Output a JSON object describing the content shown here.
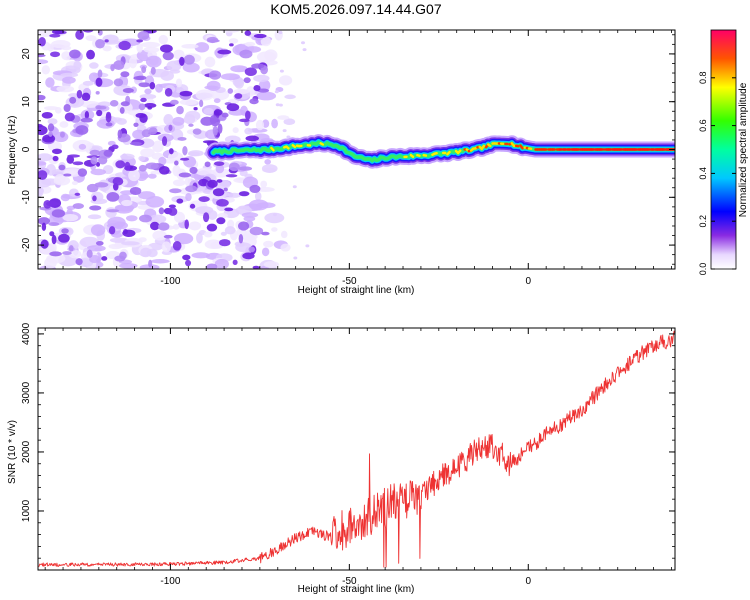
{
  "title": "KOM5.2026.097.14.44.G07",
  "chart_data": [
    {
      "type": "heatmap",
      "name": "spectrogram",
      "xlabel": "Height of straight line (km)",
      "ylabel": "Frequency (Hz)",
      "xlim": [
        -137,
        41
      ],
      "ylim": [
        -25,
        25
      ],
      "xticks": [
        -100,
        -50,
        0
      ],
      "yticks": [
        -20,
        -10,
        0,
        10,
        20
      ],
      "xtick_labels": [
        "-100",
        "-50",
        "0"
      ],
      "ytick_labels": [
        "-20",
        "-10",
        "0",
        "10",
        "20"
      ],
      "noise_region_x": [
        -137,
        -72
      ],
      "signal_track": {
        "x": [
          -88,
          -80,
          -72,
          -64,
          -58,
          -53,
          -49,
          -44,
          -39,
          -33,
          -27,
          -21,
          -15,
          -10,
          -6,
          -2,
          2,
          8,
          16,
          28,
          41
        ],
        "freq": [
          -0.5,
          -0.2,
          0.0,
          0.8,
          1.3,
          0.8,
          -1.3,
          -2.3,
          -1.6,
          -1.4,
          -1.1,
          -0.6,
          0.0,
          1.0,
          1.5,
          0.5,
          0.0,
          0.0,
          0.0,
          0.0,
          0.0
        ],
        "amplitude": [
          0.3,
          0.45,
          0.55,
          0.6,
          0.6,
          0.5,
          0.35,
          0.35,
          0.45,
          0.55,
          0.6,
          0.7,
          0.75,
          0.8,
          0.8,
          0.85,
          0.9,
          0.95,
          0.95,
          0.98,
          0.98
        ]
      },
      "colorbar": {
        "label": "Normalized spectral amplitude",
        "range": [
          0.0,
          1.0
        ],
        "ticks": [
          0.0,
          0.2,
          0.4,
          0.6,
          0.8
        ],
        "tick_labels": [
          "0.0",
          "0.2",
          "0.4",
          "0.6",
          "0.8"
        ]
      }
    },
    {
      "type": "line",
      "name": "snr",
      "xlabel": "Height of straight line (km)",
      "ylabel": "SNR (10 * v/v)",
      "xlim": [
        -137,
        41
      ],
      "ylim": [
        0,
        4100
      ],
      "xticks": [
        -100,
        -50,
        0
      ],
      "yticks": [
        1000,
        2000,
        3000,
        4000
      ],
      "xtick_labels": [
        "-100",
        "-50",
        "0"
      ],
      "ytick_labels": [
        "1000",
        "2000",
        "3000",
        "4000"
      ],
      "series": [
        {
          "name": "SNR",
          "color": "#ee3333",
          "x": [
            -137,
            -120,
            -100,
            -85,
            -75,
            -70,
            -65,
            -60,
            -55,
            -50,
            -45,
            -40,
            -35,
            -30,
            -25,
            -20,
            -15,
            -10,
            -5,
            0,
            5,
            10,
            15,
            20,
            25,
            30,
            35,
            41
          ],
          "y": [
            90,
            90,
            100,
            130,
            200,
            350,
            550,
            650,
            550,
            750,
            900,
            1050,
            1200,
            1250,
            1550,
            1750,
            2000,
            2100,
            1800,
            2050,
            2300,
            2500,
            2700,
            3050,
            3350,
            3600,
            3800,
            3930
          ]
        }
      ]
    }
  ],
  "colors": {
    "noise": "#9a66ee",
    "line": "#ee3333",
    "axis": "#000000",
    "track_center": "#ee1111",
    "background": "#ffffff"
  }
}
